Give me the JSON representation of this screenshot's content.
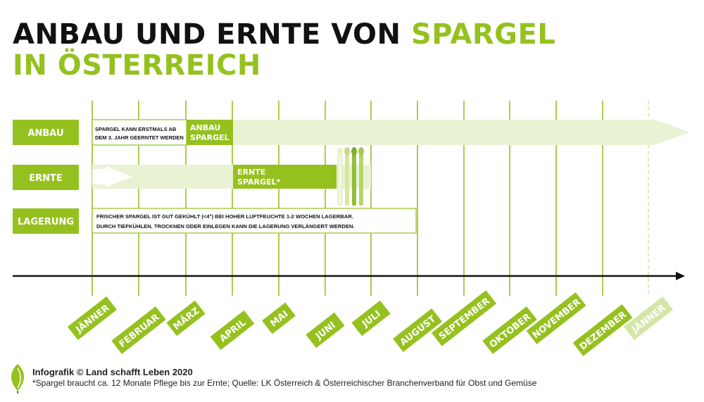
{
  "title": {
    "line1_prefix": "ANBAU UND ERNTE VON ",
    "line1_accent": "SPARGEL",
    "line2": "IN ÖSTERREICH"
  },
  "rows": [
    {
      "label": "ANBAU"
    },
    {
      "label": "ERNTE"
    },
    {
      "label": "LAGERUNG"
    }
  ],
  "anbau": {
    "note_line1": "SPARGEL KANN ERSTMALS AB",
    "note_line2": "DEM 3. JAHR GEERNTET WERDEN",
    "box_line1": "ANBAU",
    "box_line2": "SPARGEL"
  },
  "ernte": {
    "box_line1": "ERNTE",
    "box_line2": "SPARGEL*"
  },
  "lagerung": {
    "text_line1": "FRISCHER SPARGEL IST GUT GEKÜHLT (<4°) BEI HOHER LUFTFEUCHTE 1-2 WOCHEN LAGERBAR.",
    "text_line2": "DURCH TIEFKÜHLEN, TROCKNEN ODER EINLEGEN KANN DIE LAGERUNG VERLÄNGERT WERDEN."
  },
  "months": [
    "JÄNNER",
    "FEBRUAR",
    "MÄRZ",
    "APRIL",
    "MAI",
    "JUNI",
    "JULI",
    "AUGUST",
    "SEPTEMBER",
    "OKTOBER",
    "NOVEMBER",
    "DEZEMBER",
    "JÄNNER"
  ],
  "footer": {
    "credit": "Infografik © Land schafft Leben 2020",
    "note": "*Spargel braucht ca. 12 Monate Pflege bis zur Ernte; Quelle: LK Österreich & Österreichischer Branchenverband für Obst und Gemüse"
  },
  "colors": {
    "green": "#95c11f",
    "light_green": "#e9f2d3",
    "pale_green": "#d3e6a8",
    "black": "#111111"
  }
}
